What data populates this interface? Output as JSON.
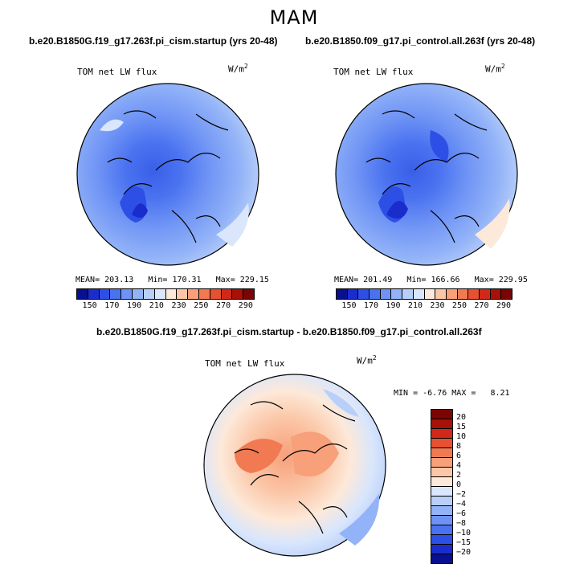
{
  "season": "MAM",
  "panel_left": {
    "case": "b.e20.B1850G.f19_g17.263f.pi_cism.startup (yrs 20-48)",
    "variable": "TOM net LW flux",
    "units_base": "W/m",
    "units_exp": "2",
    "mean_label": "MEAN=",
    "mean": "203.13",
    "min_label": "Min=",
    "min": "170.31",
    "max_label": "Max=",
    "max": "229.15"
  },
  "panel_right": {
    "case": "b.e20.B1850.f09_g17.pi_control.all.263f (yrs 20-48)",
    "variable": "TOM net LW flux",
    "units_base": "W/m",
    "units_exp": "2",
    "mean_label": "MEAN=",
    "mean": "201.49",
    "min_label": "Min=",
    "min": "166.66",
    "max_label": "Max=",
    "max": "229.95"
  },
  "colorbar_abs": {
    "ticks": [
      "150",
      "170",
      "190",
      "210",
      "230",
      "250",
      "270",
      "290"
    ],
    "colors": [
      "#08108f",
      "#1a2ccc",
      "#2e4fe6",
      "#4a72f0",
      "#6e93f5",
      "#93b3f8",
      "#b8cffa",
      "#d9e6fc",
      "#fde9d9",
      "#fbc7a8",
      "#f7a07a",
      "#f17a53",
      "#e65131",
      "#d0291a",
      "#a81108",
      "#7a0504"
    ]
  },
  "diff": {
    "title": "b.e20.B1850G.f19_g17.263f.pi_cism.startup - b.e20.B1850.f09_g17.pi_control.all.263f",
    "variable": "TOM net LW flux",
    "units_base": "W/m",
    "units_exp": "2",
    "min_label": "MIN =",
    "min": "-6.76",
    "max_label": "MAX =",
    "max": "8.21",
    "levels": [
      "20",
      "15",
      "10",
      "8",
      "6",
      "4",
      "2",
      "0",
      "−2",
      "−4",
      "−6",
      "−8",
      "−10",
      "−15",
      "−20"
    ],
    "colors": [
      "#7a0504",
      "#a81108",
      "#d0291a",
      "#e65131",
      "#f17a53",
      "#f7a07a",
      "#fbc7a8",
      "#fde9d9",
      "#d9e6fc",
      "#b8cffa",
      "#93b3f8",
      "#6e93f5",
      "#4a72f0",
      "#2e4fe6",
      "#1a2ccc",
      "#08108f"
    ]
  }
}
